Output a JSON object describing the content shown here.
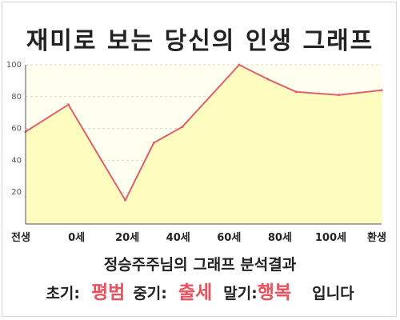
{
  "title": "재미로 보는 당신의 인생 그래프",
  "subtitle": "정승주주님의 그래프 분석결과",
  "summary": {
    "early_label": "초기:",
    "early_value": "평범",
    "middle_label": "중기:",
    "middle_value": "출세",
    "late_label": "말기:",
    "late_value": "행복",
    "ending": "입니다"
  },
  "colors": {
    "line": "#e06070",
    "fill": "#fffcc0",
    "plot_bg": "#fffff0",
    "accent": "#e8525e"
  },
  "chart_data": {
    "type": "area",
    "title": "재미로 보는 당신의 인생 그래프",
    "xlabel": "",
    "ylabel": "",
    "categories": [
      "전생",
      "0세",
      "20세",
      "40세",
      "60세",
      "80세",
      "100세",
      "환생"
    ],
    "x": [
      -15,
      0,
      20,
      30,
      40,
      60,
      70,
      80,
      95,
      110
    ],
    "series": [
      {
        "values": [
          58,
          75,
          15,
          51,
          61,
          100,
          91,
          83,
          81,
          84
        ]
      }
    ],
    "xlim": [
      -15,
      110
    ],
    "ylim": [
      0,
      100
    ],
    "yticks": [
      20,
      40,
      60,
      80,
      100
    ],
    "ytick_labels": [
      "20",
      "40",
      "60",
      "80",
      "100"
    ],
    "grid": true,
    "legend": "none"
  }
}
